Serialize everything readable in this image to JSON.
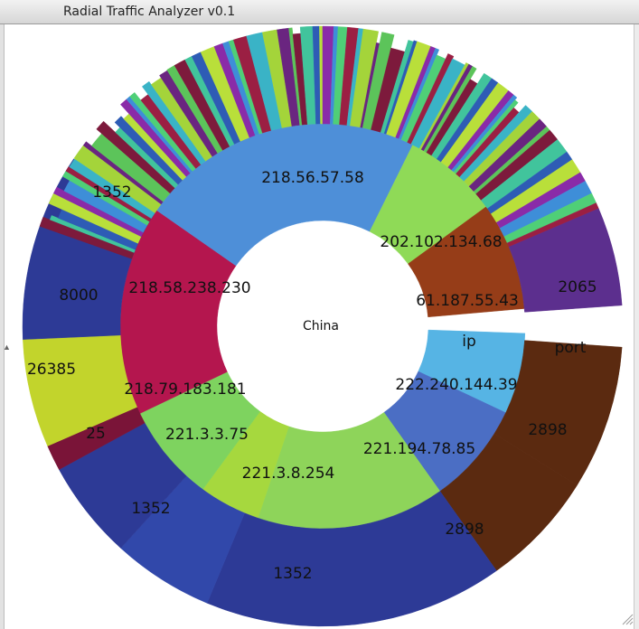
{
  "window": {
    "title": "Radial Traffic Analyzer v0.1"
  },
  "labels": {
    "center": "China",
    "ring_ip": "ip",
    "ring_port": "port"
  },
  "chart_data": {
    "type": "sunburst",
    "center": "China",
    "rings": [
      "ip",
      "port"
    ],
    "ip_segments": [
      {
        "label": "222.240.144.39",
        "share": 6.2,
        "color": "#56b4e4"
      },
      {
        "label": "221.194.78.85",
        "share": 7.8,
        "color": "#4b6ec4"
      },
      {
        "label": "221.3.8.254",
        "share": 14.4,
        "color": "#8ed45a"
      },
      {
        "label": "221.3.3.75",
        "share": 4.7,
        "color": "#a6d83e"
      },
      {
        "label": "218.79.183.181",
        "share": 7.5,
        "color": "#7ed35f"
      },
      {
        "label": "218.58.238.230",
        "share": 16.1,
        "color": "#b4164e"
      },
      {
        "label": "218.56.57.58",
        "share": 21.7,
        "color": "#4e8fd8"
      },
      {
        "label": "202.102.134.68",
        "share": 7.3,
        "color": "#8fda57"
      },
      {
        "label": "61.187.55.43",
        "share": 8.3,
        "color": "#963d18"
      }
    ],
    "port_segments": [
      {
        "label": "2898",
        "parent": "222.240.144.39"
      },
      {
        "label": "2898",
        "parent": "221.194.78.85"
      },
      {
        "label": "1352",
        "parent": "221.3.8.254"
      },
      {
        "label": "1352",
        "parent": "221.3.3.75"
      },
      {
        "label": "25",
        "parent": "218.79.183.181"
      },
      {
        "label": "26385",
        "parent": "218.79.183.181"
      },
      {
        "label": "8000",
        "parent": "218.58.238.230"
      },
      {
        "label": "1352",
        "parent": "218.58.238.230"
      },
      {
        "label": "2065",
        "parent": "61.187.55.43"
      }
    ],
    "port_colors": {
      "brown": "#5b2a10",
      "navy": "#2d3a96",
      "olive": "#c2d42c",
      "maroon": "#7a1438",
      "blue": "#3148aa",
      "purple": "#5c2f8e"
    }
  }
}
